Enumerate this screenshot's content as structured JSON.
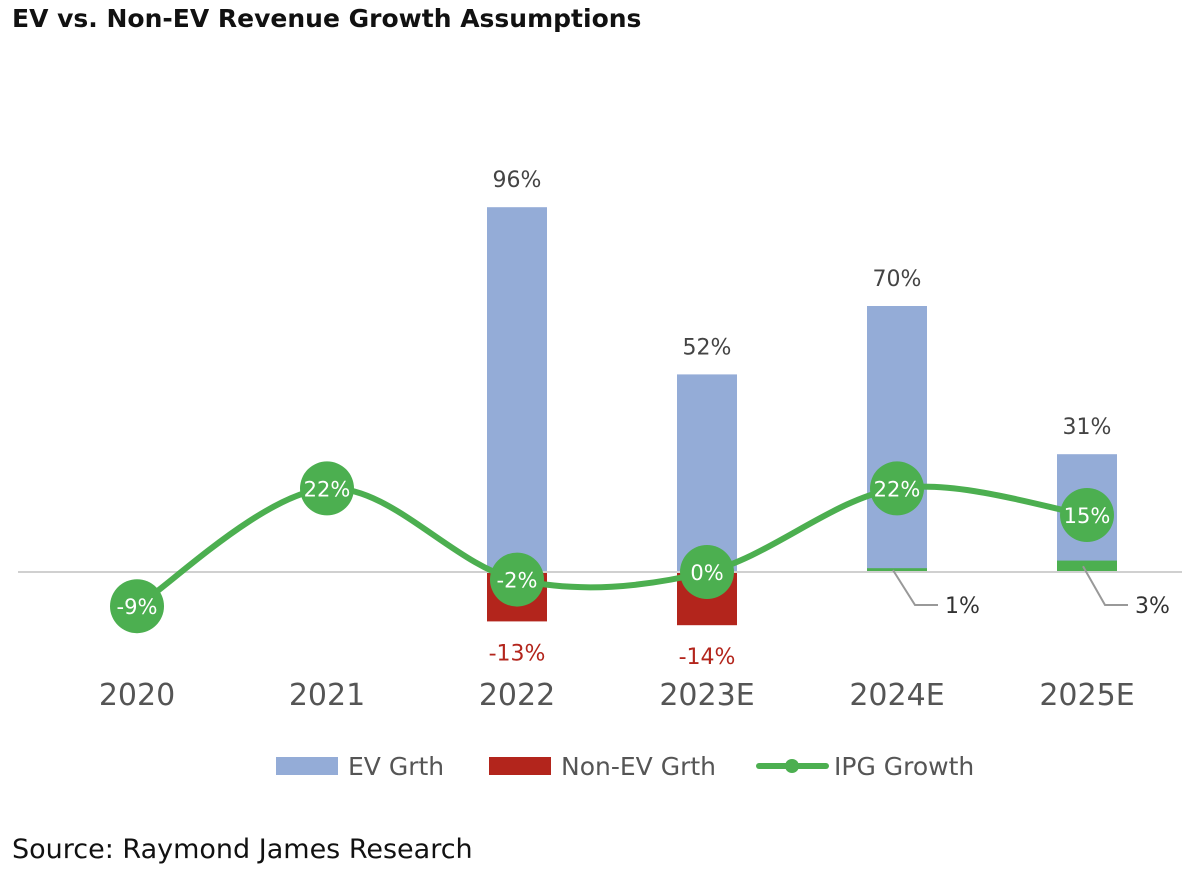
{
  "title": "EV vs. Non-EV Revenue Growth Assumptions",
  "source": "Source: Raymond James Research",
  "chart_data": {
    "type": "bar",
    "stacked": true,
    "categories": [
      "2020",
      "2021",
      "2022",
      "2023E",
      "2024E",
      "2025E"
    ],
    "series": [
      {
        "name": "EV Grth",
        "type": "bar",
        "color": "#94acd7",
        "values": [
          null,
          null,
          96,
          52,
          70,
          31
        ],
        "labels": [
          "",
          "",
          "96%",
          "52%",
          "70%",
          "31%"
        ]
      },
      {
        "name": "Non-EV Grth",
        "type": "bar",
        "color": "#b3251c",
        "values": [
          null,
          null,
          -13,
          -14,
          1,
          3
        ],
        "labels": [
          "",
          "",
          "-13%",
          "-14%",
          "1%",
          "3%"
        ]
      },
      {
        "name": "IPG Growth",
        "type": "line",
        "color": "#4caf50",
        "values": [
          -9,
          22,
          -2,
          0,
          22,
          15
        ],
        "labels": [
          "-9%",
          "22%",
          "-2%",
          "0%",
          "22%",
          "15%"
        ]
      }
    ],
    "legend_position": "bottom",
    "ylim": [
      -25,
      110
    ],
    "grid": false
  }
}
